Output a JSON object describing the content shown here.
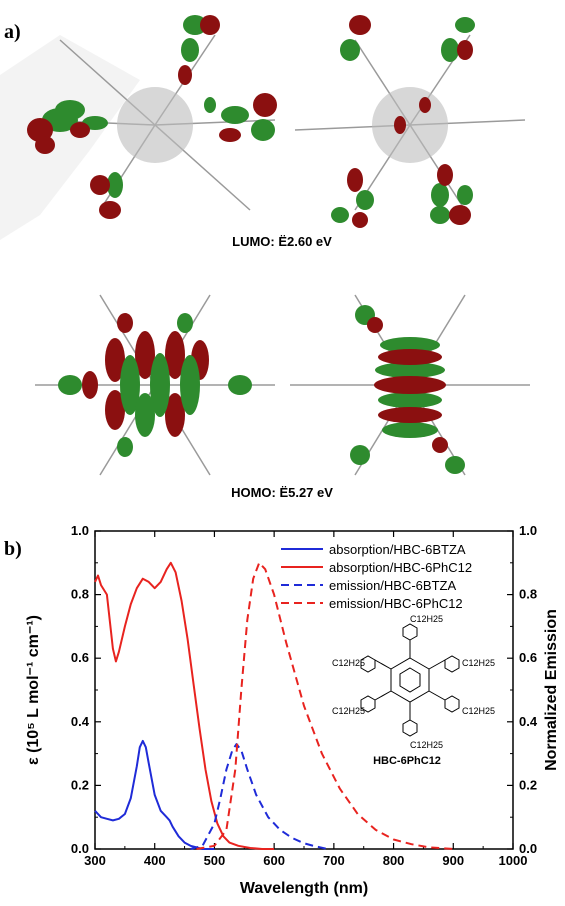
{
  "panel_a": {
    "label": "a)",
    "lumo_caption": "LUMO: Ë2.60 eV",
    "homo_caption": "HOMO: Ë5.27 eV"
  },
  "panel_b": {
    "label": "b)",
    "structure": {
      "substituent": "C12H25",
      "name": "HBC-6PhC12"
    }
  },
  "colors": {
    "red": "#e8231f",
    "blue": "#1f2bd8",
    "green": "#2e8b2e",
    "darkred": "#8b1010"
  },
  "chart_data": {
    "type": "line",
    "xlabel": "Wavelength (nm)",
    "ylabel": "ε (10⁵ L mol⁻¹ cm⁻¹)",
    "ylabel_right": "Normalized Emission",
    "xlim": [
      300,
      1000
    ],
    "ylim": [
      0.0,
      1.0
    ],
    "ylim_right": [
      0.0,
      1.0
    ],
    "xticks": [
      "300",
      "400",
      "500",
      "600",
      "700",
      "800",
      "900",
      "1000"
    ],
    "yticks": [
      "0.0",
      "0.2",
      "0.4",
      "0.6",
      "0.8",
      "1.0"
    ],
    "legend_position": "top-right",
    "series": [
      {
        "name": "absorption/HBC-6BTZA",
        "style": "solid",
        "color": "#1f2bd8",
        "x": [
          300,
          310,
          320,
          330,
          340,
          350,
          360,
          370,
          375,
          380,
          385,
          390,
          400,
          410,
          420,
          425,
          430,
          440,
          450,
          460,
          470,
          480,
          500
        ],
        "y": [
          0.12,
          0.1,
          0.095,
          0.09,
          0.095,
          0.11,
          0.16,
          0.26,
          0.32,
          0.34,
          0.32,
          0.27,
          0.17,
          0.12,
          0.1,
          0.09,
          0.07,
          0.04,
          0.02,
          0.01,
          0.005,
          0.0,
          0.0
        ]
      },
      {
        "name": "absorption/HBC-6PhC12",
        "style": "solid",
        "color": "#e8231f",
        "x": [
          300,
          305,
          310,
          320,
          330,
          335,
          340,
          350,
          360,
          370,
          380,
          390,
          400,
          410,
          420,
          427,
          435,
          445,
          455,
          465,
          475,
          485,
          495,
          505,
          515,
          525,
          540,
          560,
          580,
          600
        ],
        "y": [
          0.84,
          0.86,
          0.83,
          0.8,
          0.63,
          0.59,
          0.62,
          0.7,
          0.77,
          0.82,
          0.85,
          0.84,
          0.82,
          0.84,
          0.88,
          0.9,
          0.87,
          0.78,
          0.66,
          0.52,
          0.38,
          0.25,
          0.15,
          0.08,
          0.04,
          0.02,
          0.01,
          0.003,
          0.0,
          0.0
        ]
      },
      {
        "name": "emission/HBC-6BTZA",
        "style": "dashed",
        "color": "#1f2bd8",
        "x": [
          460,
          480,
          500,
          510,
          520,
          530,
          537,
          545,
          555,
          570,
          590,
          610,
          630,
          650,
          670,
          690
        ],
        "y": [
          0.0,
          0.01,
          0.08,
          0.16,
          0.25,
          0.31,
          0.33,
          0.31,
          0.25,
          0.17,
          0.1,
          0.06,
          0.035,
          0.018,
          0.008,
          0.0
        ]
      },
      {
        "name": "emission/HBC-6PhC12",
        "style": "dashed",
        "color": "#e8231f",
        "x": [
          470,
          500,
          520,
          535,
          545,
          555,
          565,
          575,
          585,
          600,
          620,
          650,
          680,
          710,
          740,
          770,
          800,
          830,
          860,
          900
        ],
        "y": [
          0.0,
          0.01,
          0.06,
          0.25,
          0.5,
          0.72,
          0.85,
          0.9,
          0.88,
          0.8,
          0.65,
          0.45,
          0.3,
          0.19,
          0.11,
          0.06,
          0.03,
          0.015,
          0.005,
          0.0
        ]
      }
    ]
  }
}
